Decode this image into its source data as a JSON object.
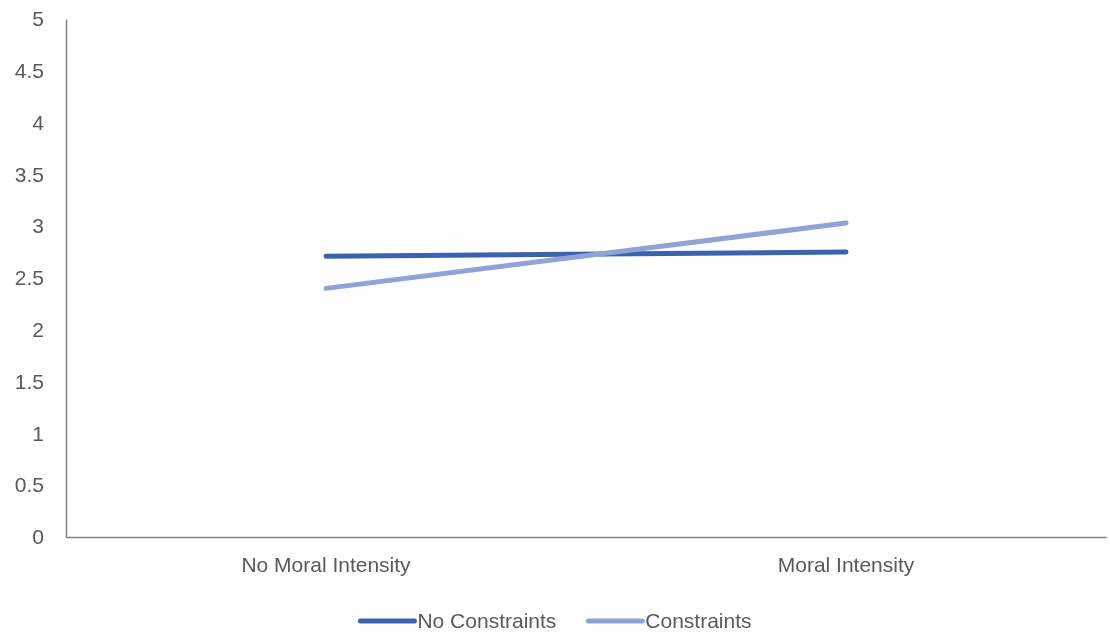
{
  "chart_data": {
    "type": "line",
    "categories": [
      "No Moral Intensity",
      "Moral Intensity"
    ],
    "series": [
      {
        "name": "No Constraints",
        "color": "#3a62ae",
        "values": [
          2.71,
          2.75
        ]
      },
      {
        "name": "Constraints",
        "color": "#8fa3d6",
        "values": [
          2.4,
          3.03
        ]
      }
    ],
    "ylim": [
      0,
      5
    ],
    "yticks": [
      0,
      0.5,
      1,
      1.5,
      2,
      2.5,
      3,
      3.5,
      4,
      4.5,
      5
    ],
    "grid": false,
    "legend": "bottom",
    "marker": "none",
    "line_style": "solid"
  }
}
